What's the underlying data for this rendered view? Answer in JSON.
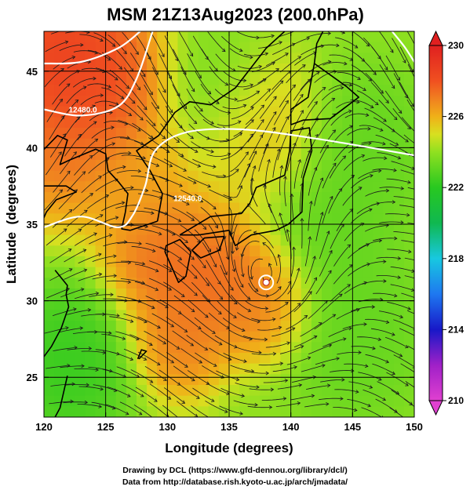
{
  "chart_data": {
    "type": "heatmap",
    "title": "MSM 21Z13Aug2023 (200.0hPa)",
    "xlabel": "Longitude (degrees)",
    "ylabel": "Latitude  (degrees)",
    "xlim": [
      120,
      150
    ],
    "ylim": [
      22.4,
      47.6
    ],
    "x_ticks": [
      120,
      125,
      130,
      135,
      140,
      145,
      150
    ],
    "y_ticks": [
      25,
      30,
      35,
      40,
      45
    ],
    "grid": true,
    "colorbar": {
      "range": [
        210,
        230
      ],
      "ticks": [
        230,
        226,
        222,
        218,
        214,
        210
      ],
      "extend": "both",
      "stops": [
        {
          "v": 210,
          "color": "#e040d0"
        },
        {
          "v": 212,
          "color": "#a020c8"
        },
        {
          "v": 214,
          "color": "#1818c8"
        },
        {
          "v": 216,
          "color": "#1e78f0"
        },
        {
          "v": 218,
          "color": "#18c8e0"
        },
        {
          "v": 220,
          "color": "#10b850"
        },
        {
          "v": 222,
          "color": "#28c820"
        },
        {
          "v": 224,
          "color": "#90e020"
        },
        {
          "v": 225,
          "color": "#d8e020"
        },
        {
          "v": 226,
          "color": "#f0b018"
        },
        {
          "v": 227,
          "color": "#f08020"
        },
        {
          "v": 228,
          "color": "#f05020"
        },
        {
          "v": 230,
          "color": "#e02020"
        }
      ]
    },
    "temperature_features": [
      {
        "lon": 121.5,
        "lat": 45.5,
        "value": 229.6,
        "radius": 4.2
      },
      {
        "lon": 124.5,
        "lat": 44.0,
        "value": 228.5,
        "radius": 4.5
      },
      {
        "lon": 121.0,
        "lat": 40.0,
        "value": 227.5,
        "radius": 4.0
      },
      {
        "lon": 129.5,
        "lat": 33.0,
        "value": 228.0,
        "radius": 3.5
      },
      {
        "lon": 134.0,
        "lat": 31.5,
        "value": 228.0,
        "radius": 3.5
      },
      {
        "lon": 138.0,
        "lat": 30.0,
        "value": 227.5,
        "radius": 3.0
      },
      {
        "lon": 131.0,
        "lat": 27.5,
        "value": 227.5,
        "radius": 3.0
      },
      {
        "lon": 128.0,
        "lat": 37.0,
        "value": 226.5,
        "radius": 3.5
      },
      {
        "lon": 137.5,
        "lat": 41.0,
        "value": 226.0,
        "radius": 4.0
      },
      {
        "lon": 122.0,
        "lat": 26.0,
        "value": 222.0,
        "radius": 4.0
      },
      {
        "lon": 143.0,
        "lat": 35.0,
        "value": 223.0,
        "radius": 4.0
      },
      {
        "lon": 146.0,
        "lat": 40.0,
        "value": 223.0,
        "radius": 4.0
      },
      {
        "lon": 145.0,
        "lat": 28.0,
        "value": 223.0,
        "radius": 4.5
      },
      {
        "lon": 134.0,
        "lat": 44.0,
        "value": 223.5,
        "radius": 3.5
      }
    ],
    "height_contours": [
      {
        "label": "12480.0",
        "label_lon": 122.0,
        "label_lat": 42.3,
        "points": [
          [
            120,
            42.5
          ],
          [
            123,
            42.1
          ],
          [
            126,
            42.7
          ],
          [
            127.5,
            44.5
          ],
          [
            128.8,
            47.6
          ]
        ]
      },
      {
        "label": "12540.0",
        "label_lon": 130.5,
        "label_lat": 36.5,
        "points": [
          [
            120,
            34.8
          ],
          [
            123,
            35.5
          ],
          [
            126,
            34.8
          ],
          [
            127.2,
            35.6
          ],
          [
            128.2,
            37.5
          ],
          [
            129.0,
            39.8
          ],
          [
            131.5,
            41.0
          ],
          [
            136,
            41.2
          ],
          [
            142,
            40.6
          ],
          [
            150,
            39.5
          ]
        ]
      },
      {
        "label": "",
        "label_lon": 0,
        "label_lat": 0,
        "points": [
          [
            120,
            45.5
          ],
          [
            123,
            45.6
          ],
          [
            126,
            46.5
          ],
          [
            127.8,
            47.6
          ]
        ]
      },
      {
        "label": "",
        "label_lon": 0,
        "label_lat": 0,
        "points": [
          [
            148.2,
            47.6
          ],
          [
            149.2,
            46.6
          ],
          [
            150,
            45.6
          ]
        ]
      }
    ],
    "cyclone_center": {
      "lon": 138.0,
      "lat": 31.2
    }
  },
  "footer": {
    "line1": "Drawing by DCL (https://www.gfd-dennou.org/library/dcl/)",
    "line2": "Data from http://database.rish.kyoto-u.ac.jp/arch/jmadata/"
  }
}
